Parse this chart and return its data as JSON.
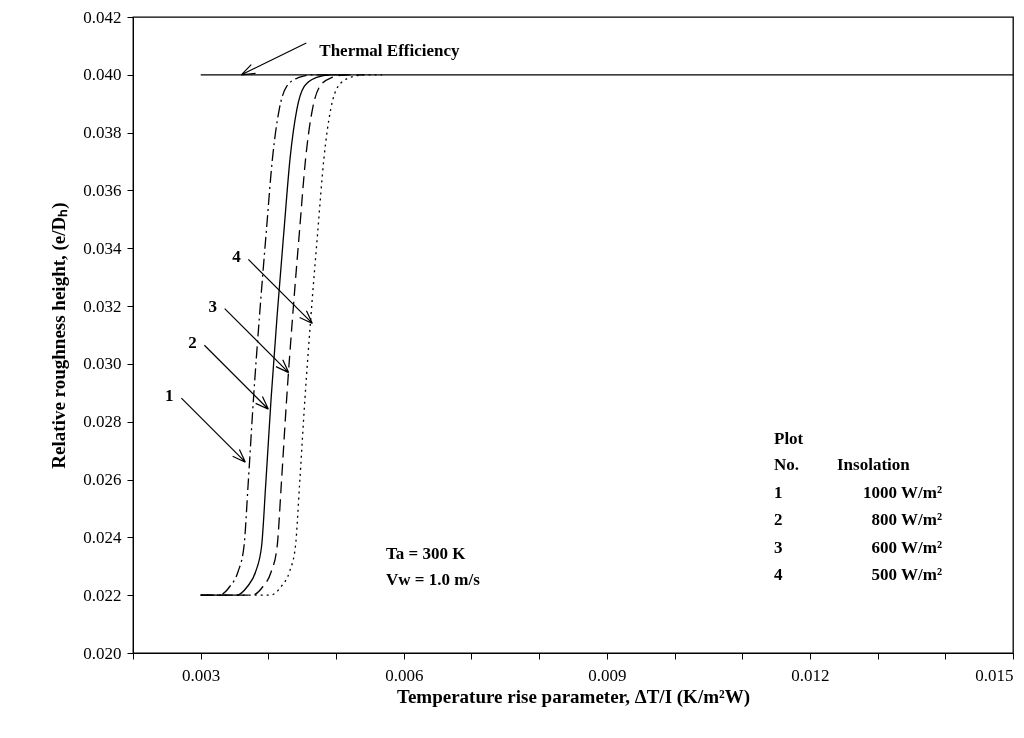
{
  "chart_data": {
    "type": "line",
    "xlabel": "Temperature rise parameter, ΔT/I (K/m²W)",
    "ylabel": "Relative roughness height, (e/Dₕ)",
    "xlim": [
      0.002,
      0.015
    ],
    "xticks": [
      {
        "value": 0.002,
        "label": null
      },
      0.003,
      {
        "value": 0.004,
        "label": null
      },
      {
        "value": 0.005,
        "label": null
      },
      0.006,
      {
        "value": 0.007,
        "label": null
      },
      {
        "value": 0.008,
        "label": null
      },
      0.009,
      {
        "value": 0.01,
        "label": null
      },
      {
        "value": 0.011,
        "label": null
      },
      0.012,
      {
        "value": 0.013,
        "label": null
      },
      {
        "value": 0.014,
        "label": null
      },
      0.015
    ],
    "ylim": [
      0.02,
      0.042
    ],
    "yticks": [
      {
        "value": 0.02,
        "label": "0.020"
      },
      {
        "value": 0.022,
        "label": "0.022"
      },
      {
        "value": 0.024,
        "label": "0.024"
      },
      {
        "value": 0.026,
        "label": "0.026"
      },
      {
        "value": 0.028,
        "label": "0.028"
      },
      {
        "value": 0.03,
        "label": "0.030"
      },
      {
        "value": 0.032,
        "label": "0.032"
      },
      {
        "value": 0.034,
        "label": "0.034"
      },
      {
        "value": 0.036,
        "label": "0.036"
      },
      {
        "value": 0.038,
        "label": "0.038"
      },
      {
        "value": 0.04,
        "label": "0.040"
      },
      {
        "value": 0.042,
        "label": "0.042"
      }
    ],
    "grid": false,
    "marker": "none",
    "series": [
      {
        "color": "#000000",
        "line_style": "solid",
        "x": [
          0.003,
          0.015
        ],
        "values": [
          0.04,
          0.04
        ]
      },
      {
        "color": "#000000",
        "line_style": "dashdot",
        "x": [
          0.003,
          0.00327,
          0.00343,
          0.00355,
          0.00364,
          0.0037,
          0.00378,
          0.00387,
          0.00397,
          0.00406,
          0.00416,
          0.00427,
          0.00444,
          0.00466,
          0.00492
        ],
        "values": [
          0.022,
          0.022,
          0.0223,
          0.0228,
          0.0237,
          0.0258,
          0.0288,
          0.0317,
          0.0346,
          0.0371,
          0.0388,
          0.0396,
          0.0399,
          0.04,
          0.04
        ]
      },
      {
        "color": "#000000",
        "line_style": "solid",
        "x": [
          0.003,
          0.00353,
          0.00369,
          0.00381,
          0.0039,
          0.00396,
          0.00404,
          0.00413,
          0.00423,
          0.00432,
          0.00442,
          0.00453,
          0.0047,
          0.00492,
          0.00518
        ],
        "values": [
          0.022,
          0.022,
          0.0223,
          0.0228,
          0.0237,
          0.0258,
          0.0288,
          0.0317,
          0.0346,
          0.0371,
          0.0388,
          0.0396,
          0.0399,
          0.04,
          0.04
        ]
      },
      {
        "color": "#000000",
        "line_style": "dashed",
        "x": [
          0.003,
          0.00376,
          0.00392,
          0.00404,
          0.00413,
          0.00419,
          0.00427,
          0.00436,
          0.00446,
          0.00455,
          0.00465,
          0.00476,
          0.00493,
          0.00515,
          0.00541
        ],
        "values": [
          0.022,
          0.022,
          0.0223,
          0.0228,
          0.0237,
          0.0258,
          0.0288,
          0.0317,
          0.0346,
          0.0371,
          0.0388,
          0.0396,
          0.0399,
          0.04,
          0.04
        ]
      },
      {
        "color": "#000000",
        "line_style": "dotted",
        "x": [
          0.003,
          0.00403,
          0.00419,
          0.00431,
          0.0044,
          0.00446,
          0.00454,
          0.00463,
          0.00473,
          0.00482,
          0.00492,
          0.00503,
          0.0052,
          0.00542,
          0.00568
        ],
        "values": [
          0.022,
          0.022,
          0.0223,
          0.0228,
          0.0237,
          0.0258,
          0.0288,
          0.0317,
          0.0346,
          0.0371,
          0.0388,
          0.0396,
          0.0399,
          0.04,
          0.04
        ]
      }
    ],
    "annotations": [
      {
        "text": "Thermal Efficiency",
        "x": 0.0036,
        "y": 0.04
      },
      {
        "text": "1",
        "x": 0.00366,
        "y": 0.0266
      },
      {
        "text": "2",
        "x": 0.004,
        "y": 0.02843
      },
      {
        "text": "3",
        "x": 0.0043,
        "y": 0.0297
      },
      {
        "text": "4",
        "x": 0.00465,
        "y": 0.0314
      },
      "Ta = 300 K",
      "Vw = 1.0 m/s",
      "Plot",
      "No.",
      "Insolation",
      "1",
      "1000 W/m²",
      "2",
      "800 W/m²",
      "3",
      "600 W/m²",
      "4",
      "500 W/m²"
    ]
  }
}
